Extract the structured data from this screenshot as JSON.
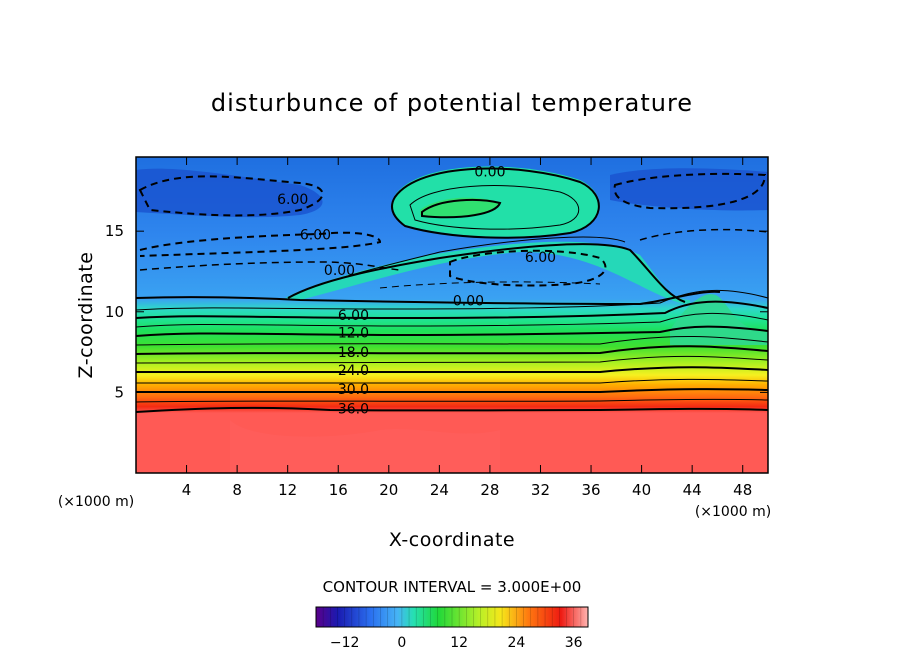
{
  "chart_data": {
    "type": "heatmap",
    "title": "disturbunce of potential temperature",
    "xlabel": "X-coordinate",
    "ylabel": "Z-coordinate",
    "x_unit": "(×1000 m)",
    "y_unit": "(×1000 m)",
    "xlim": [
      0,
      50
    ],
    "ylim": [
      0,
      19.6
    ],
    "x_ticks": [
      4,
      8,
      12,
      16,
      20,
      24,
      28,
      32,
      36,
      40,
      44,
      48
    ],
    "y_ticks": [
      5,
      10,
      15
    ],
    "contour_interval_text": "CONTOUR INTERVAL = 3.000E+00",
    "contour_interval": 3.0,
    "contour_labels": [
      {
        "text": "0.00",
        "x": 28.0,
        "z": 18.7
      },
      {
        "text": "6.00",
        "x": 12.4,
        "z": 17.0
      },
      {
        "text": "6.00",
        "x": 14.2,
        "z": 14.8
      },
      {
        "text": "6.00",
        "x": 32.0,
        "z": 13.4
      },
      {
        "text": "0.00",
        "x": 16.1,
        "z": 12.6
      },
      {
        "text": "0.00",
        "x": 26.3,
        "z": 10.7
      },
      {
        "text": "6.00",
        "x": 17.2,
        "z": 9.8
      },
      {
        "text": "12.0",
        "x": 17.2,
        "z": 8.7
      },
      {
        "text": "18.0",
        "x": 17.2,
        "z": 7.5
      },
      {
        "text": "24.0",
        "x": 17.2,
        "z": 6.4
      },
      {
        "text": "30.0",
        "x": 17.2,
        "z": 5.2
      },
      {
        "text": "36.0",
        "x": 17.2,
        "z": 4.0
      }
    ],
    "colorbar": {
      "range": [
        -18,
        39
      ],
      "ticks": [
        -12,
        0,
        12,
        24,
        36
      ],
      "tick_labels": [
        "−12",
        "0",
        "12",
        "24",
        "36"
      ]
    }
  }
}
